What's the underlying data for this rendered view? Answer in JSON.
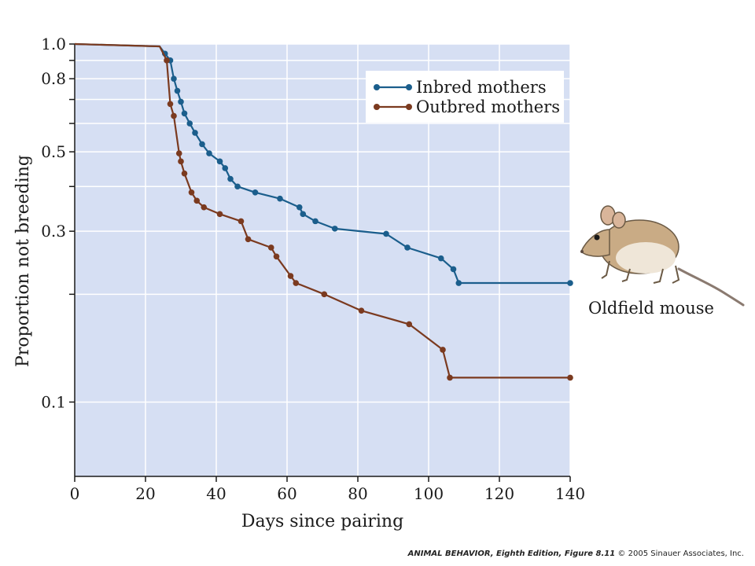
{
  "chart_data": {
    "type": "line",
    "xlabel": "Days since pairing",
    "ylabel": "Proportion not breeding",
    "y_scale": "log",
    "xlim": [
      0,
      140
    ],
    "ylim": [
      0.062,
      1.0
    ],
    "x_ticks": [
      0,
      20,
      40,
      60,
      80,
      100,
      120,
      140
    ],
    "x_tick_labels": [
      "0",
      "20",
      "40",
      "60",
      "80",
      "100",
      "120",
      "140"
    ],
    "y_ticks": [
      0.1,
      0.3,
      0.5,
      0.8,
      1.0
    ],
    "y_tick_labels": [
      "0.1",
      "0.3",
      "0.5",
      "0.8",
      "1.0"
    ],
    "y_minor_ticks": [
      0.2,
      0.4,
      0.6,
      0.7,
      0.9
    ],
    "grid": true,
    "legend_position": "top-right",
    "background": "#d6dff3",
    "series": [
      {
        "name": "Inbred mothers",
        "color": "#1b5e8c",
        "points": [
          [
            25.5,
            0.94
          ],
          [
            27,
            0.9
          ],
          [
            28,
            0.8
          ],
          [
            29,
            0.74
          ],
          [
            30,
            0.69
          ],
          [
            31,
            0.64
          ],
          [
            32.5,
            0.6
          ],
          [
            34,
            0.565
          ],
          [
            36,
            0.525
          ],
          [
            38,
            0.495
          ],
          [
            41,
            0.47
          ],
          [
            42.5,
            0.45
          ],
          [
            44,
            0.42
          ],
          [
            46,
            0.4
          ],
          [
            51,
            0.385
          ],
          [
            58,
            0.37
          ],
          [
            63.5,
            0.35
          ],
          [
            64.5,
            0.335
          ],
          [
            68,
            0.32
          ],
          [
            73.5,
            0.305
          ],
          [
            88,
            0.295
          ],
          [
            94,
            0.27
          ],
          [
            103.5,
            0.252
          ],
          [
            107,
            0.235
          ],
          [
            108.5,
            0.215
          ],
          [
            140,
            0.215
          ]
        ]
      },
      {
        "name": "Outbred mothers",
        "color": "#7b3a1f",
        "points": [
          [
            26,
            0.9
          ],
          [
            27,
            0.68
          ],
          [
            28,
            0.63
          ],
          [
            29.5,
            0.495
          ],
          [
            30,
            0.47
          ],
          [
            31,
            0.435
          ],
          [
            33,
            0.385
          ],
          [
            34.5,
            0.365
          ],
          [
            36.5,
            0.35
          ],
          [
            41,
            0.335
          ],
          [
            47,
            0.32
          ],
          [
            49,
            0.285
          ],
          [
            55.5,
            0.27
          ],
          [
            57,
            0.255
          ],
          [
            61,
            0.225
          ],
          [
            62.5,
            0.215
          ],
          [
            70.5,
            0.2
          ],
          [
            81,
            0.18
          ],
          [
            94.5,
            0.165
          ],
          [
            104,
            0.14
          ],
          [
            106,
            0.117
          ],
          [
            140,
            0.117
          ]
        ]
      }
    ],
    "annotation": "Oldfield mouse"
  },
  "caption": {
    "book": "ANIMAL BEHAVIOR, Eighth Edition, Figure 8.11",
    "copyright": "© 2005 Sinauer Associates, Inc."
  },
  "icons": {
    "mouse": "oldfield-mouse-illustration"
  }
}
